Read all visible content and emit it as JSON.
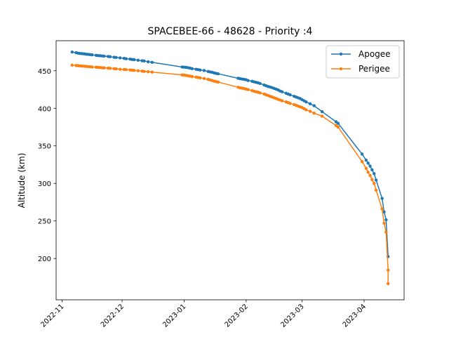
{
  "chart_data": {
    "type": "line",
    "title": "SPACEBEE-66 - 48628 - Priority :4",
    "xlabel": "",
    "ylabel": "Altitude (km)",
    "xlim": [
      "2022-10-29",
      "2023-04-21"
    ],
    "ylim": [
      145,
      490
    ],
    "x_ticks": [
      "2022-11",
      "2022-12",
      "2023-01",
      "2023-02",
      "2023-03",
      "2023-04"
    ],
    "x_tick_dates": [
      "2022-11-01",
      "2022-12-01",
      "2023-01-01",
      "2023-02-01",
      "2023-03-01",
      "2023-04-01"
    ],
    "y_ticks": [
      200,
      250,
      300,
      350,
      400,
      450
    ],
    "grid": false,
    "legend": "top-right",
    "series": [
      {
        "name": "Apogee",
        "color": "#1f77b4",
        "points": [
          [
            "2022-11-06",
            475
          ],
          [
            "2022-11-08",
            474
          ],
          [
            "2022-11-09",
            473.5
          ],
          [
            "2022-11-10",
            473
          ],
          [
            "2022-11-11",
            472.8
          ],
          [
            "2022-11-12",
            472.5
          ],
          [
            "2022-11-13",
            472
          ],
          [
            "2022-11-14",
            471.8
          ],
          [
            "2022-11-15",
            471.5
          ],
          [
            "2022-11-16",
            471.2
          ],
          [
            "2022-11-18",
            470.5
          ],
          [
            "2022-11-19",
            470.2
          ],
          [
            "2022-11-20",
            470
          ],
          [
            "2022-11-21",
            469.7
          ],
          [
            "2022-11-22",
            469.5
          ],
          [
            "2022-11-24",
            469
          ],
          [
            "2022-11-25",
            468.7
          ],
          [
            "2022-11-27",
            468
          ],
          [
            "2022-11-28",
            467.7
          ],
          [
            "2022-11-30",
            467.2
          ],
          [
            "2022-12-02",
            466.5
          ],
          [
            "2022-12-03",
            466
          ],
          [
            "2022-12-05",
            465.5
          ],
          [
            "2022-12-06",
            465
          ],
          [
            "2022-12-07",
            464.8
          ],
          [
            "2022-12-09",
            464
          ],
          [
            "2022-12-11",
            463.3
          ],
          [
            "2022-12-12",
            463
          ],
          [
            "2022-12-14",
            462
          ],
          [
            "2022-12-16",
            461.2
          ],
          [
            "2022-12-31",
            455
          ],
          [
            "2023-01-01",
            454.8
          ],
          [
            "2023-01-02",
            454.5
          ],
          [
            "2023-01-03",
            454
          ],
          [
            "2023-01-04",
            453.5
          ],
          [
            "2023-01-05",
            452.8
          ],
          [
            "2023-01-07",
            452
          ],
          [
            "2023-01-08",
            451.5
          ],
          [
            "2023-01-09",
            451
          ],
          [
            "2023-01-11",
            450.3
          ],
          [
            "2023-01-13",
            449
          ],
          [
            "2023-01-14",
            448.5
          ],
          [
            "2023-01-15",
            448
          ],
          [
            "2023-01-16",
            447.2
          ],
          [
            "2023-01-17",
            446.5
          ],
          [
            "2023-01-18",
            446
          ],
          [
            "2023-01-28",
            440
          ],
          [
            "2023-01-29",
            439.5
          ],
          [
            "2023-01-30",
            439
          ],
          [
            "2023-01-31",
            438.5
          ],
          [
            "2023-02-01",
            438
          ],
          [
            "2023-02-02",
            437
          ],
          [
            "2023-02-04",
            436
          ],
          [
            "2023-02-05",
            435.2
          ],
          [
            "2023-02-06",
            434.5
          ],
          [
            "2023-02-07",
            434
          ],
          [
            "2023-02-08",
            433
          ],
          [
            "2023-02-10",
            431
          ],
          [
            "2023-02-11",
            430
          ],
          [
            "2023-02-12",
            429
          ],
          [
            "2023-02-13",
            428.3
          ],
          [
            "2023-02-14",
            427.5
          ],
          [
            "2023-02-15",
            426.5
          ],
          [
            "2023-02-16",
            425.5
          ],
          [
            "2023-02-17",
            424.5
          ],
          [
            "2023-02-18",
            423
          ],
          [
            "2023-02-19",
            422
          ],
          [
            "2023-02-21",
            420
          ],
          [
            "2023-02-22",
            419
          ],
          [
            "2023-02-23",
            418
          ],
          [
            "2023-02-25",
            416
          ],
          [
            "2023-02-26",
            415
          ],
          [
            "2023-02-27",
            414
          ],
          [
            "2023-02-28",
            413
          ],
          [
            "2023-03-01",
            411.5
          ],
          [
            "2023-03-02",
            410
          ],
          [
            "2023-03-03",
            408.5
          ],
          [
            "2023-03-05",
            406
          ],
          [
            "2023-03-07",
            403.5
          ],
          [
            "2023-03-11",
            395.5
          ],
          [
            "2023-03-18",
            382
          ],
          [
            "2023-03-19",
            380
          ],
          [
            "2023-03-31",
            339
          ],
          [
            "2023-04-02",
            331
          ],
          [
            "2023-04-03",
            327
          ],
          [
            "2023-04-04",
            323
          ],
          [
            "2023-04-05",
            318
          ],
          [
            "2023-04-06",
            313
          ],
          [
            "2023-04-07",
            304.5
          ],
          [
            "2023-04-10",
            280
          ],
          [
            "2023-04-11",
            262
          ],
          [
            "2023-04-12",
            251.5
          ],
          [
            "2023-04-13",
            202.5
          ]
        ]
      },
      {
        "name": "Perigee",
        "color": "#ff7f0e",
        "points": [
          [
            "2022-11-06",
            457.5
          ],
          [
            "2022-11-08",
            457
          ],
          [
            "2022-11-09",
            456.8
          ],
          [
            "2022-11-10",
            456.5
          ],
          [
            "2022-11-11",
            456.3
          ],
          [
            "2022-11-12",
            456
          ],
          [
            "2022-11-13",
            455.8
          ],
          [
            "2022-11-14",
            455.5
          ],
          [
            "2022-11-15",
            455.3
          ],
          [
            "2022-11-16",
            455
          ],
          [
            "2022-11-18",
            454.7
          ],
          [
            "2022-11-19",
            454.5
          ],
          [
            "2022-11-20",
            454.3
          ],
          [
            "2022-11-21",
            454
          ],
          [
            "2022-11-22",
            453.8
          ],
          [
            "2022-11-24",
            453.5
          ],
          [
            "2022-11-25",
            453.2
          ],
          [
            "2022-11-27",
            452.8
          ],
          [
            "2022-11-28",
            452.5
          ],
          [
            "2022-11-30",
            452
          ],
          [
            "2022-12-02",
            451.7
          ],
          [
            "2022-12-03",
            451.5
          ],
          [
            "2022-12-05",
            451
          ],
          [
            "2022-12-06",
            450.8
          ],
          [
            "2022-12-07",
            450.5
          ],
          [
            "2022-12-09",
            450
          ],
          [
            "2022-12-11",
            449.5
          ],
          [
            "2022-12-12",
            449.2
          ],
          [
            "2022-12-14",
            448.7
          ],
          [
            "2022-12-16",
            448.2
          ],
          [
            "2022-12-31",
            444.5
          ],
          [
            "2023-01-01",
            444.2
          ],
          [
            "2023-01-02",
            443.8
          ],
          [
            "2023-01-03",
            443.3
          ],
          [
            "2023-01-04",
            442.8
          ],
          [
            "2023-01-05",
            442.3
          ],
          [
            "2023-01-07",
            441.5
          ],
          [
            "2023-01-08",
            441
          ],
          [
            "2023-01-09",
            440.5
          ],
          [
            "2023-01-11",
            439.7
          ],
          [
            "2023-01-13",
            438.5
          ],
          [
            "2023-01-14",
            437.8
          ],
          [
            "2023-01-15",
            437
          ],
          [
            "2023-01-16",
            436.2
          ],
          [
            "2023-01-17",
            435.5
          ],
          [
            "2023-01-18",
            435
          ],
          [
            "2023-01-28",
            428
          ],
          [
            "2023-01-29",
            427.3
          ],
          [
            "2023-01-30",
            426.8
          ],
          [
            "2023-01-31",
            426.2
          ],
          [
            "2023-02-01",
            425.5
          ],
          [
            "2023-02-02",
            425
          ],
          [
            "2023-02-04",
            423.5
          ],
          [
            "2023-02-05",
            422.7
          ],
          [
            "2023-02-06",
            422
          ],
          [
            "2023-02-07",
            421.3
          ],
          [
            "2023-02-08",
            420.5
          ],
          [
            "2023-02-10",
            419
          ],
          [
            "2023-02-11",
            418
          ],
          [
            "2023-02-12",
            417
          ],
          [
            "2023-02-13",
            416
          ],
          [
            "2023-02-14",
            415
          ],
          [
            "2023-02-15",
            414
          ],
          [
            "2023-02-16",
            413
          ],
          [
            "2023-02-17",
            412
          ],
          [
            "2023-02-18",
            411
          ],
          [
            "2023-02-19",
            410
          ],
          [
            "2023-02-21",
            408.5
          ],
          [
            "2023-02-22",
            407.5
          ],
          [
            "2023-02-23",
            406.5
          ],
          [
            "2023-02-25",
            405
          ],
          [
            "2023-02-26",
            404
          ],
          [
            "2023-02-27",
            403
          ],
          [
            "2023-02-28",
            402
          ],
          [
            "2023-03-01",
            401
          ],
          [
            "2023-03-02",
            399.5
          ],
          [
            "2023-03-03",
            398
          ],
          [
            "2023-03-05",
            396
          ],
          [
            "2023-03-07",
            393.5
          ],
          [
            "2023-03-11",
            389.5
          ],
          [
            "2023-03-18",
            377
          ],
          [
            "2023-03-19",
            375
          ],
          [
            "2023-03-31",
            329
          ],
          [
            "2023-04-02",
            320
          ],
          [
            "2023-04-03",
            315
          ],
          [
            "2023-04-04",
            310.5
          ],
          [
            "2023-04-05",
            305
          ],
          [
            "2023-04-06",
            300
          ],
          [
            "2023-04-07",
            291
          ],
          [
            "2023-04-10",
            266
          ],
          [
            "2023-04-11",
            247
          ],
          [
            "2023-04-12",
            235
          ],
          [
            "2023-04-13",
            184.5
          ],
          [
            "2023-04-13",
            166.5
          ]
        ]
      }
    ]
  }
}
